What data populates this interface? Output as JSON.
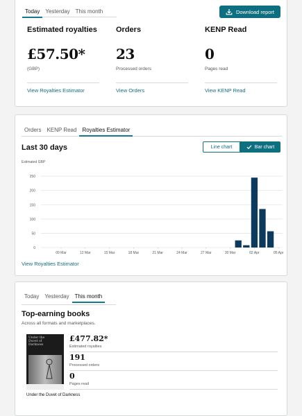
{
  "summary": {
    "tabs": [
      "Today",
      "Yesterday",
      "This month"
    ],
    "active_tab": 0,
    "download_label": "Download report",
    "metrics": [
      {
        "title": "Estimated royalties",
        "value": "£57.50*",
        "sub": "(GBP)",
        "link": "View Royalties Estimator"
      },
      {
        "title": "Orders",
        "value": "23",
        "sub": "Processed orders",
        "link": "View Orders"
      },
      {
        "title": "KENP Read",
        "value": "0",
        "sub": "Pages read",
        "link": "View KENP Read"
      }
    ]
  },
  "chart_section": {
    "tabs": [
      "Orders",
      "KENP Read",
      "Royalties Estimator"
    ],
    "active_tab": 2,
    "title": "Last 30 days",
    "toggle": {
      "line": "Line chart",
      "bar": "Bar chart",
      "selected": "bar"
    },
    "link": "View Royalties Estimator",
    "accent": "#0e6f80",
    "bar_color": "#0b3a5e"
  },
  "chart_data": {
    "type": "bar",
    "ylabel": "Estimated GBP",
    "ylim": [
      0,
      260
    ],
    "yticks": [
      0,
      50,
      100,
      150,
      200,
      250
    ],
    "grid": true,
    "x_tick_labels": [
      "09 Mar",
      "12 Mar",
      "15 Mar",
      "18 Mar",
      "21 Mar",
      "24 Mar",
      "27 Mar",
      "30 Mar",
      "02 Apr",
      "05 Apr"
    ],
    "categories": [
      "07 Mar",
      "08 Mar",
      "09 Mar",
      "10 Mar",
      "11 Mar",
      "12 Mar",
      "13 Mar",
      "14 Mar",
      "15 Mar",
      "16 Mar",
      "17 Mar",
      "18 Mar",
      "19 Mar",
      "20 Mar",
      "21 Mar",
      "22 Mar",
      "23 Mar",
      "24 Mar",
      "25 Mar",
      "26 Mar",
      "27 Mar",
      "28 Mar",
      "29 Mar",
      "30 Mar",
      "31 Mar",
      "01 Apr",
      "02 Apr",
      "03 Apr",
      "04 Apr",
      "05 Apr"
    ],
    "values": [
      0,
      0,
      0,
      0,
      0,
      0,
      0,
      0,
      0,
      0,
      0,
      0,
      0,
      0,
      0,
      0,
      0,
      0,
      0,
      0,
      0,
      0,
      0,
      0,
      25,
      8,
      245,
      135,
      57,
      0
    ]
  },
  "books_section": {
    "tabs": [
      "Today",
      "Yesterday",
      "This month"
    ],
    "active_tab": 2,
    "title": "Top-earning books",
    "subtitle": "Across all formats and marketplaces.",
    "book": {
      "name": "Under the Duvet of Darkness",
      "cover_text": "Under the Duvet of Darkness",
      "stats": [
        {
          "value": "£477.82*",
          "label": "Estimated royalties"
        },
        {
          "value": "191",
          "label": "Processed orders"
        },
        {
          "value": "0",
          "label": "Pages read"
        }
      ]
    }
  }
}
